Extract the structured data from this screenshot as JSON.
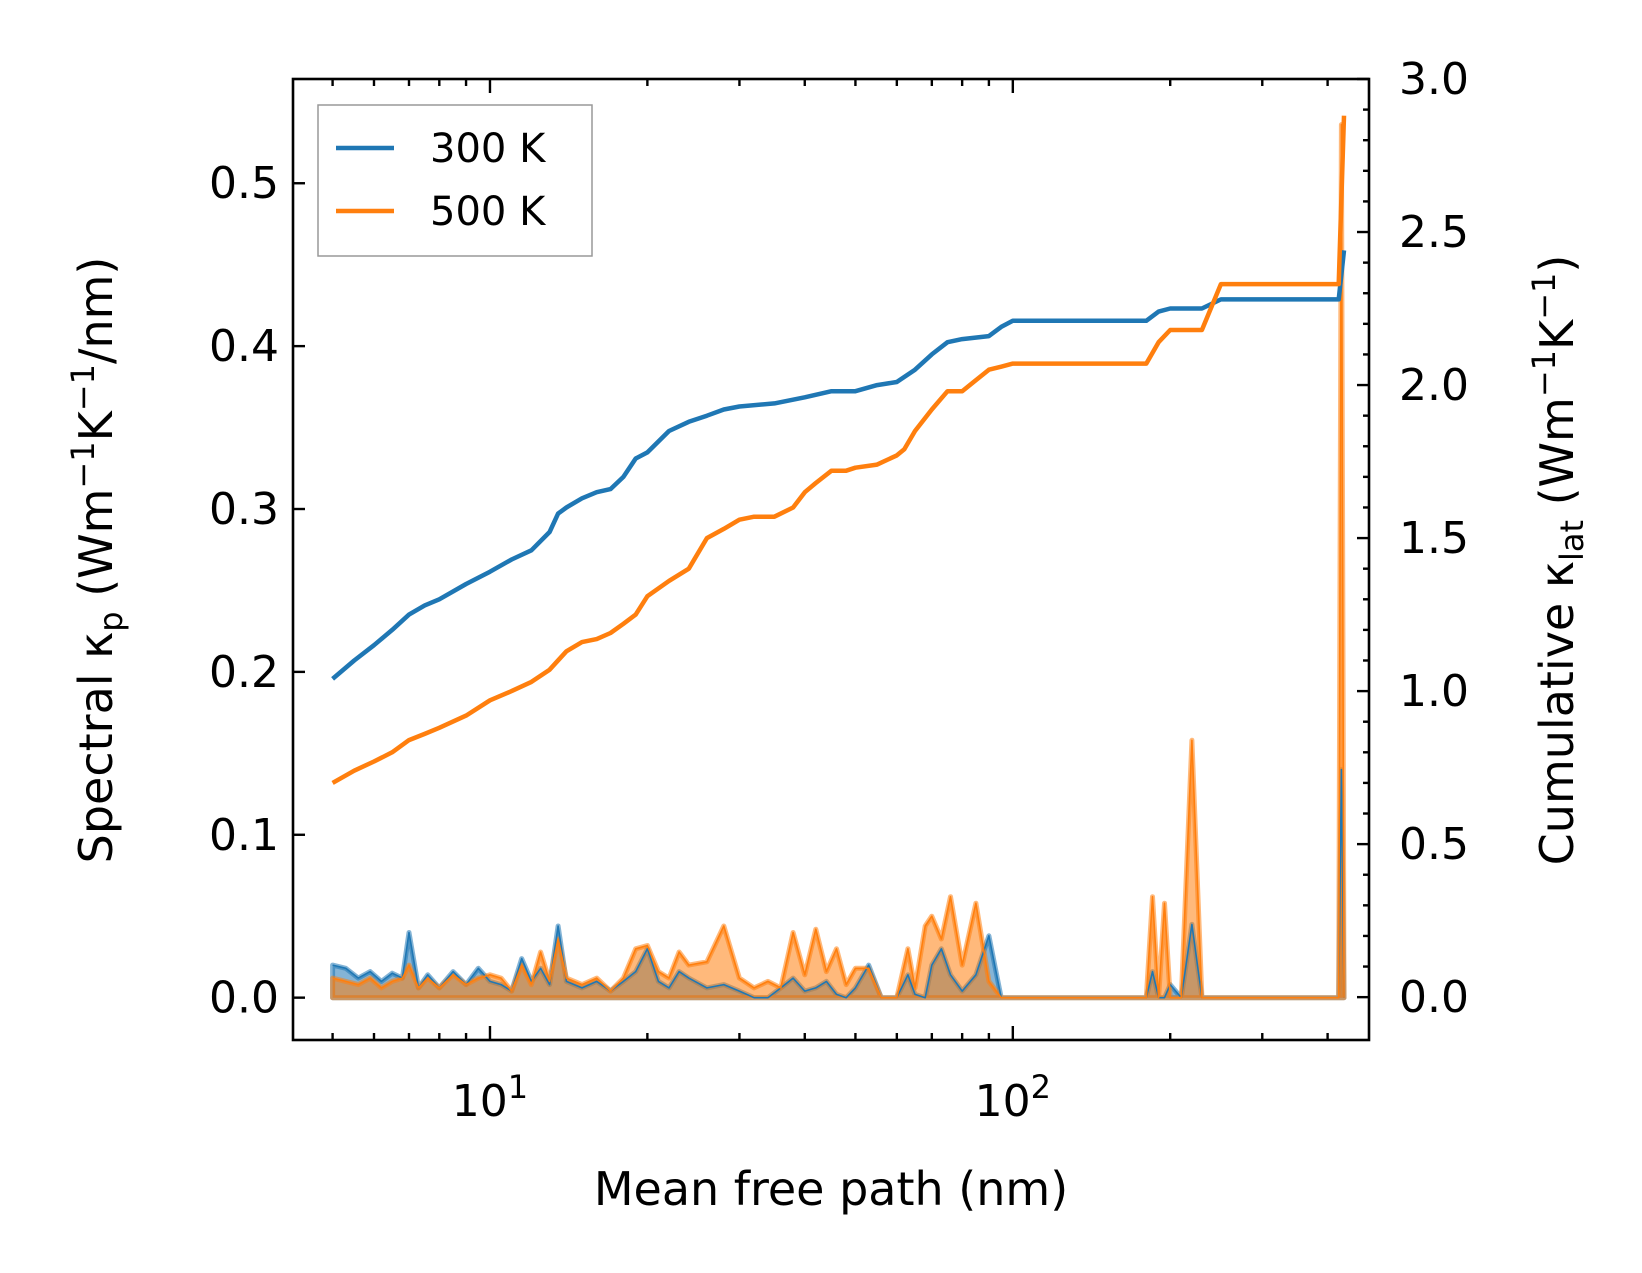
{
  "chart_data": {
    "type": "line",
    "x_scale": "log",
    "xlabel": "Mean free path (nm)",
    "ylabel_left": {
      "main": "Spectral κ",
      "sub": "p",
      "unit_open": " (Wm",
      "exp1": "−1",
      "unit_mid": "K",
      "exp2": "−1",
      "unit_close": "/nm)"
    },
    "ylabel_right": {
      "main": "Cumulative κ",
      "sub": "lat",
      "unit_open": " (Wm",
      "exp1": "−1",
      "unit_mid": "K",
      "exp2": "−1",
      "unit_close": ")"
    },
    "xlim": [
      4.2,
      480
    ],
    "ylim_left": [
      -0.026,
      0.564
    ],
    "ylim_right": [
      -0.14,
      3.0
    ],
    "x_major_ticks": [
      {
        "value": 10,
        "base": "10",
        "exp": "1"
      },
      {
        "value": 100,
        "base": "10",
        "exp": "2"
      }
    ],
    "left_ticks": [
      {
        "value": 0.0,
        "label": "0.0"
      },
      {
        "value": 0.1,
        "label": "0.1"
      },
      {
        "value": 0.2,
        "label": "0.2"
      },
      {
        "value": 0.3,
        "label": "0.3"
      },
      {
        "value": 0.4,
        "label": "0.4"
      },
      {
        "value": 0.5,
        "label": "0.5"
      }
    ],
    "right_ticks": [
      {
        "value": 0.0,
        "label": "0.0"
      },
      {
        "value": 0.5,
        "label": "0.5"
      },
      {
        "value": 1.0,
        "label": "1.0"
      },
      {
        "value": 1.5,
        "label": "1.5"
      },
      {
        "value": 2.0,
        "label": "2.0"
      },
      {
        "value": 2.5,
        "label": "2.5"
      },
      {
        "value": 3.0,
        "label": "3.0"
      }
    ],
    "legend": {
      "placement": "top-left",
      "entries": [
        "300 K",
        "500 K"
      ]
    },
    "series": [
      {
        "name": "300 K",
        "color": "#1f77b4",
        "cumulative": {
          "axis": "right",
          "x": [
            5,
            5.5,
            6,
            6.5,
            7,
            7.5,
            8,
            9,
            10,
            11,
            12,
            13,
            13.5,
            14,
            15,
            16,
            17,
            18,
            19,
            20,
            22,
            24,
            26,
            28,
            30,
            35,
            40,
            45,
            50,
            55,
            60,
            65,
            70,
            75,
            80,
            90,
            95,
            100,
            120,
            150,
            180,
            190,
            200,
            230,
            250,
            300,
            400,
            420,
            430
          ],
          "y": [
            1.04,
            1.1,
            1.15,
            1.2,
            1.25,
            1.28,
            1.3,
            1.35,
            1.39,
            1.43,
            1.46,
            1.52,
            1.58,
            1.6,
            1.63,
            1.65,
            1.66,
            1.7,
            1.76,
            1.78,
            1.85,
            1.88,
            1.9,
            1.92,
            1.93,
            1.94,
            1.96,
            1.98,
            1.98,
            2.0,
            2.01,
            2.05,
            2.1,
            2.14,
            2.15,
            2.16,
            2.19,
            2.21,
            2.21,
            2.21,
            2.21,
            2.24,
            2.25,
            2.25,
            2.28,
            2.28,
            2.28,
            2.28,
            2.44
          ]
        },
        "spectral": {
          "axis": "left",
          "x": [
            5,
            5.3,
            5.6,
            5.9,
            6.2,
            6.5,
            6.8,
            7,
            7.3,
            7.6,
            8,
            8.5,
            9,
            9.5,
            10,
            10.5,
            11,
            11.5,
            12,
            12.5,
            13,
            13.5,
            14,
            15,
            16,
            17,
            18,
            19,
            20,
            21,
            22,
            23,
            24,
            26,
            28,
            30,
            32,
            34,
            36,
            38,
            40,
            42,
            44,
            46,
            48,
            50,
            53,
            56,
            60,
            63,
            65,
            68,
            70,
            73,
            76,
            80,
            85,
            90,
            95,
            100,
            120,
            150,
            180,
            185,
            190,
            195,
            200,
            210,
            220,
            230,
            235,
            240,
            250,
            300,
            350,
            400,
            420,
            425,
            430
          ],
          "y": [
            0.02,
            0.018,
            0.012,
            0.016,
            0.01,
            0.015,
            0.012,
            0.04,
            0.006,
            0.014,
            0.006,
            0.016,
            0.008,
            0.018,
            0.01,
            0.008,
            0.004,
            0.024,
            0.01,
            0.018,
            0.008,
            0.044,
            0.01,
            0.006,
            0.01,
            0.004,
            0.01,
            0.016,
            0.03,
            0.01,
            0.006,
            0.016,
            0.012,
            0.006,
            0.008,
            0.004,
            0.0,
            0.0,
            0.006,
            0.012,
            0.004,
            0.006,
            0.01,
            0.002,
            0.0,
            0.006,
            0.02,
            0.0,
            0.0,
            0.014,
            0.002,
            0.0,
            0.02,
            0.03,
            0.014,
            0.004,
            0.014,
            0.038,
            0.0,
            0.0,
            0.0,
            0.0,
            0.0,
            0.016,
            0.0,
            0.0,
            0.008,
            0.0,
            0.045,
            0.0,
            0.0,
            0.0,
            0.0,
            0.0,
            0.0,
            0.0,
            0.0,
            0.14,
            0.0
          ]
        }
      },
      {
        "name": "500 K",
        "color": "#ff7f0e",
        "cumulative": {
          "axis": "right",
          "x": [
            5,
            5.5,
            6,
            6.5,
            7,
            7.5,
            8,
            9,
            10,
            11,
            12,
            13,
            14,
            15,
            16,
            17,
            18,
            19,
            20,
            22,
            24,
            26,
            28,
            30,
            32,
            35,
            38,
            40,
            42,
            45,
            48,
            50,
            55,
            60,
            62,
            65,
            70,
            75,
            80,
            90,
            95,
            100,
            120,
            150,
            180,
            190,
            200,
            230,
            250,
            300,
            400,
            420,
            430
          ],
          "y": [
            0.7,
            0.74,
            0.77,
            0.8,
            0.84,
            0.86,
            0.88,
            0.92,
            0.97,
            1.0,
            1.03,
            1.07,
            1.13,
            1.16,
            1.17,
            1.19,
            1.22,
            1.25,
            1.31,
            1.36,
            1.4,
            1.5,
            1.53,
            1.56,
            1.57,
            1.57,
            1.6,
            1.65,
            1.68,
            1.72,
            1.72,
            1.73,
            1.74,
            1.77,
            1.79,
            1.85,
            1.92,
            1.98,
            1.98,
            2.05,
            2.06,
            2.07,
            2.07,
            2.07,
            2.07,
            2.14,
            2.18,
            2.18,
            2.33,
            2.33,
            2.33,
            2.33,
            2.88
          ]
        },
        "spectral": {
          "axis": "left",
          "x": [
            5,
            5.3,
            5.6,
            5.9,
            6.2,
            6.5,
            6.8,
            7,
            7.3,
            7.6,
            8,
            8.5,
            9,
            9.5,
            10,
            10.5,
            11,
            11.5,
            12,
            12.5,
            13,
            13.5,
            14,
            15,
            16,
            17,
            18,
            19,
            20,
            21,
            22,
            23,
            24,
            26,
            28,
            30,
            32,
            34,
            36,
            38,
            40,
            42,
            44,
            46,
            48,
            50,
            53,
            56,
            60,
            63,
            65,
            68,
            70,
            73,
            76,
            80,
            85,
            90,
            95,
            100,
            120,
            150,
            180,
            185,
            190,
            195,
            200,
            210,
            220,
            230,
            235,
            240,
            250,
            300,
            350,
            400,
            420,
            425,
            430
          ],
          "y": [
            0.012,
            0.01,
            0.008,
            0.012,
            0.006,
            0.01,
            0.012,
            0.02,
            0.006,
            0.012,
            0.006,
            0.014,
            0.008,
            0.012,
            0.014,
            0.012,
            0.004,
            0.02,
            0.008,
            0.028,
            0.01,
            0.036,
            0.012,
            0.008,
            0.012,
            0.004,
            0.012,
            0.03,
            0.032,
            0.016,
            0.012,
            0.028,
            0.02,
            0.022,
            0.044,
            0.012,
            0.006,
            0.01,
            0.006,
            0.04,
            0.014,
            0.042,
            0.016,
            0.03,
            0.008,
            0.018,
            0.018,
            0.0,
            0.0,
            0.03,
            0.006,
            0.044,
            0.05,
            0.036,
            0.062,
            0.02,
            0.058,
            0.01,
            0.0,
            0.0,
            0.0,
            0.0,
            0.0,
            0.062,
            0.0,
            0.058,
            0.0,
            0.0,
            0.158,
            0.0,
            0.0,
            0.0,
            0.0,
            0.0,
            0.0,
            0.0,
            0.0,
            0.536,
            0.0
          ]
        }
      }
    ]
  }
}
